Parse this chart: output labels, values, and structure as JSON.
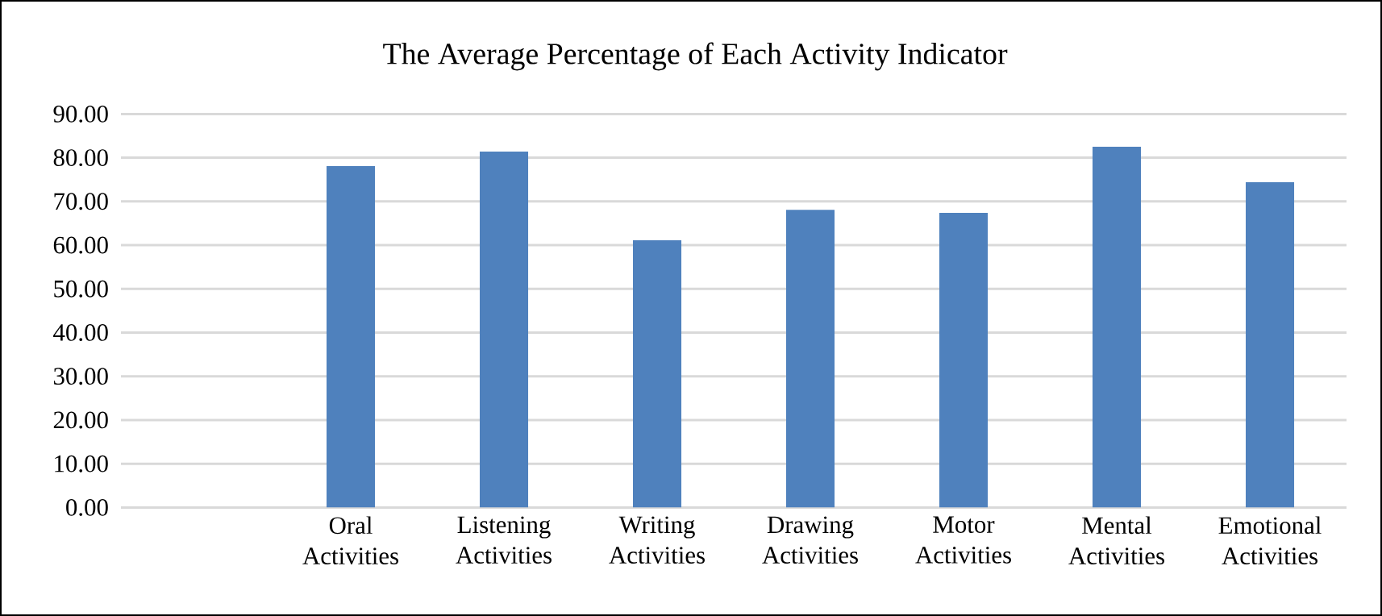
{
  "chart_data": {
    "type": "bar",
    "title": "The Average Percentage of Each Activity Indicator",
    "categories": [
      null,
      "Oral Activities",
      "Listening Activities",
      "Writing Activities",
      "Drawing Activities",
      "Motor Activities",
      "Mental Activities",
      "Emotional Activities"
    ],
    "values": [
      null,
      78.1,
      81.4,
      61.1,
      68.1,
      67.4,
      82.5,
      74.4
    ],
    "color": "#4f81bd",
    "ylim": [
      0,
      90
    ],
    "yticks": [
      {
        "value": 0,
        "label": "0.00"
      },
      {
        "value": 10,
        "label": "10.00"
      },
      {
        "value": 20,
        "label": "20.00"
      },
      {
        "value": 30,
        "label": "30.00"
      },
      {
        "value": 40,
        "label": "40.00"
      },
      {
        "value": 50,
        "label": "50.00"
      },
      {
        "value": 60,
        "label": "60.00"
      },
      {
        "value": 70,
        "label": "70.00"
      },
      {
        "value": 80,
        "label": "80.00"
      },
      {
        "value": 90,
        "label": "90.00"
      }
    ],
    "grid": "y"
  }
}
